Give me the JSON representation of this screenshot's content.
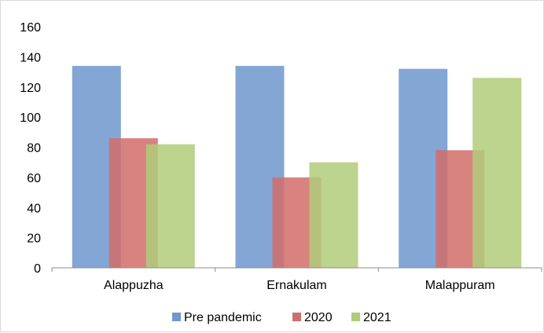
{
  "chart_data": {
    "type": "bar",
    "categories": [
      "Alappuzha",
      "Ernakulam",
      "Malappuram"
    ],
    "series": [
      {
        "name": "Pre pandemic",
        "values": [
          134,
          134,
          132
        ],
        "color": "#6f97cc"
      },
      {
        "name": "2020",
        "values": [
          86,
          60,
          78
        ],
        "color": "#d16d6a"
      },
      {
        "name": "2021",
        "values": [
          82,
          70,
          126
        ],
        "color": "#b0cc7a"
      }
    ],
    "ylim": [
      0,
      160
    ],
    "yticks": [
      "0",
      "20",
      "40",
      "60",
      "80",
      "100",
      "120",
      "140",
      "160"
    ],
    "grid": false,
    "legend_position": "bottom",
    "title": "",
    "xlabel": "",
    "ylabel": ""
  }
}
